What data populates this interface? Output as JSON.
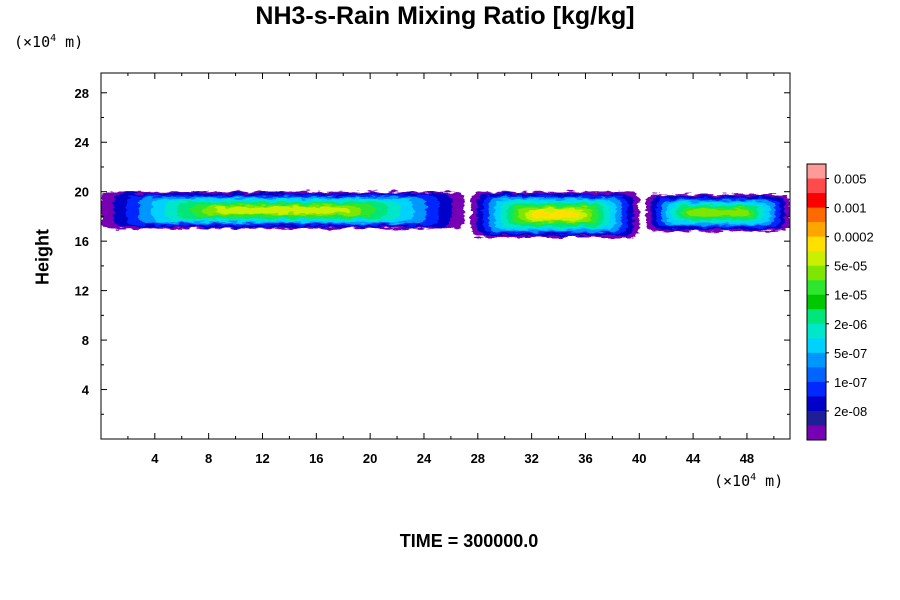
{
  "chart_data": {
    "type": "heatmap",
    "title": "NH3-s-Rain Mixing Ratio [kg/kg]",
    "ylabel": "Height",
    "xlabel": "",
    "x_unit": "(×10",
    "x_unit_exp": "4",
    "x_unit_suffix": " m)",
    "y_unit": "(×10",
    "y_unit_exp": "4",
    "y_unit_suffix": " m)",
    "xlim": [
      0,
      51.2
    ],
    "ylim": [
      0,
      29.6
    ],
    "x_ticks": [
      "4",
      "8",
      "12",
      "16",
      "20",
      "24",
      "28",
      "32",
      "36",
      "40",
      "44",
      "48"
    ],
    "x_tick_values": [
      4,
      8,
      12,
      16,
      20,
      24,
      28,
      32,
      36,
      40,
      44,
      48
    ],
    "y_ticks": [
      "4",
      "8",
      "12",
      "16",
      "20",
      "24",
      "28"
    ],
    "y_tick_values": [
      4,
      8,
      12,
      16,
      20,
      24,
      28
    ],
    "time_label": "TIME = 300000.0",
    "colorbar": {
      "labels": [
        "0.005",
        "0.001",
        "0.0002",
        "5e-05",
        "1e-05",
        "2e-06",
        "5e-07",
        "1e-07",
        "2e-08"
      ],
      "colors": [
        "#ff9a9a",
        "#ff4b4b",
        "#ff0000",
        "#ff6a00",
        "#ffa500",
        "#ffe000",
        "#c8f000",
        "#7ee600",
        "#2ee62e",
        "#00c800",
        "#00e67a",
        "#00e6c8",
        "#00d2ff",
        "#0096ff",
        "#0064ff",
        "#0028ff",
        "#0000c8",
        "#1e1e96",
        "#7800b4"
      ]
    },
    "bands": [
      {
        "x_start": 0.0,
        "x_end": 27.0,
        "y_bottom": 17.0,
        "y_top": 20.0,
        "core_level": "5e-05"
      },
      {
        "x_start": 27.5,
        "x_end": 40.0,
        "y_bottom": 16.3,
        "y_top": 20.0,
        "core_level": "0.0002"
      },
      {
        "x_start": 40.5,
        "x_end": 51.2,
        "y_bottom": 16.8,
        "y_top": 19.8,
        "core_level": "1e-05"
      }
    ]
  }
}
